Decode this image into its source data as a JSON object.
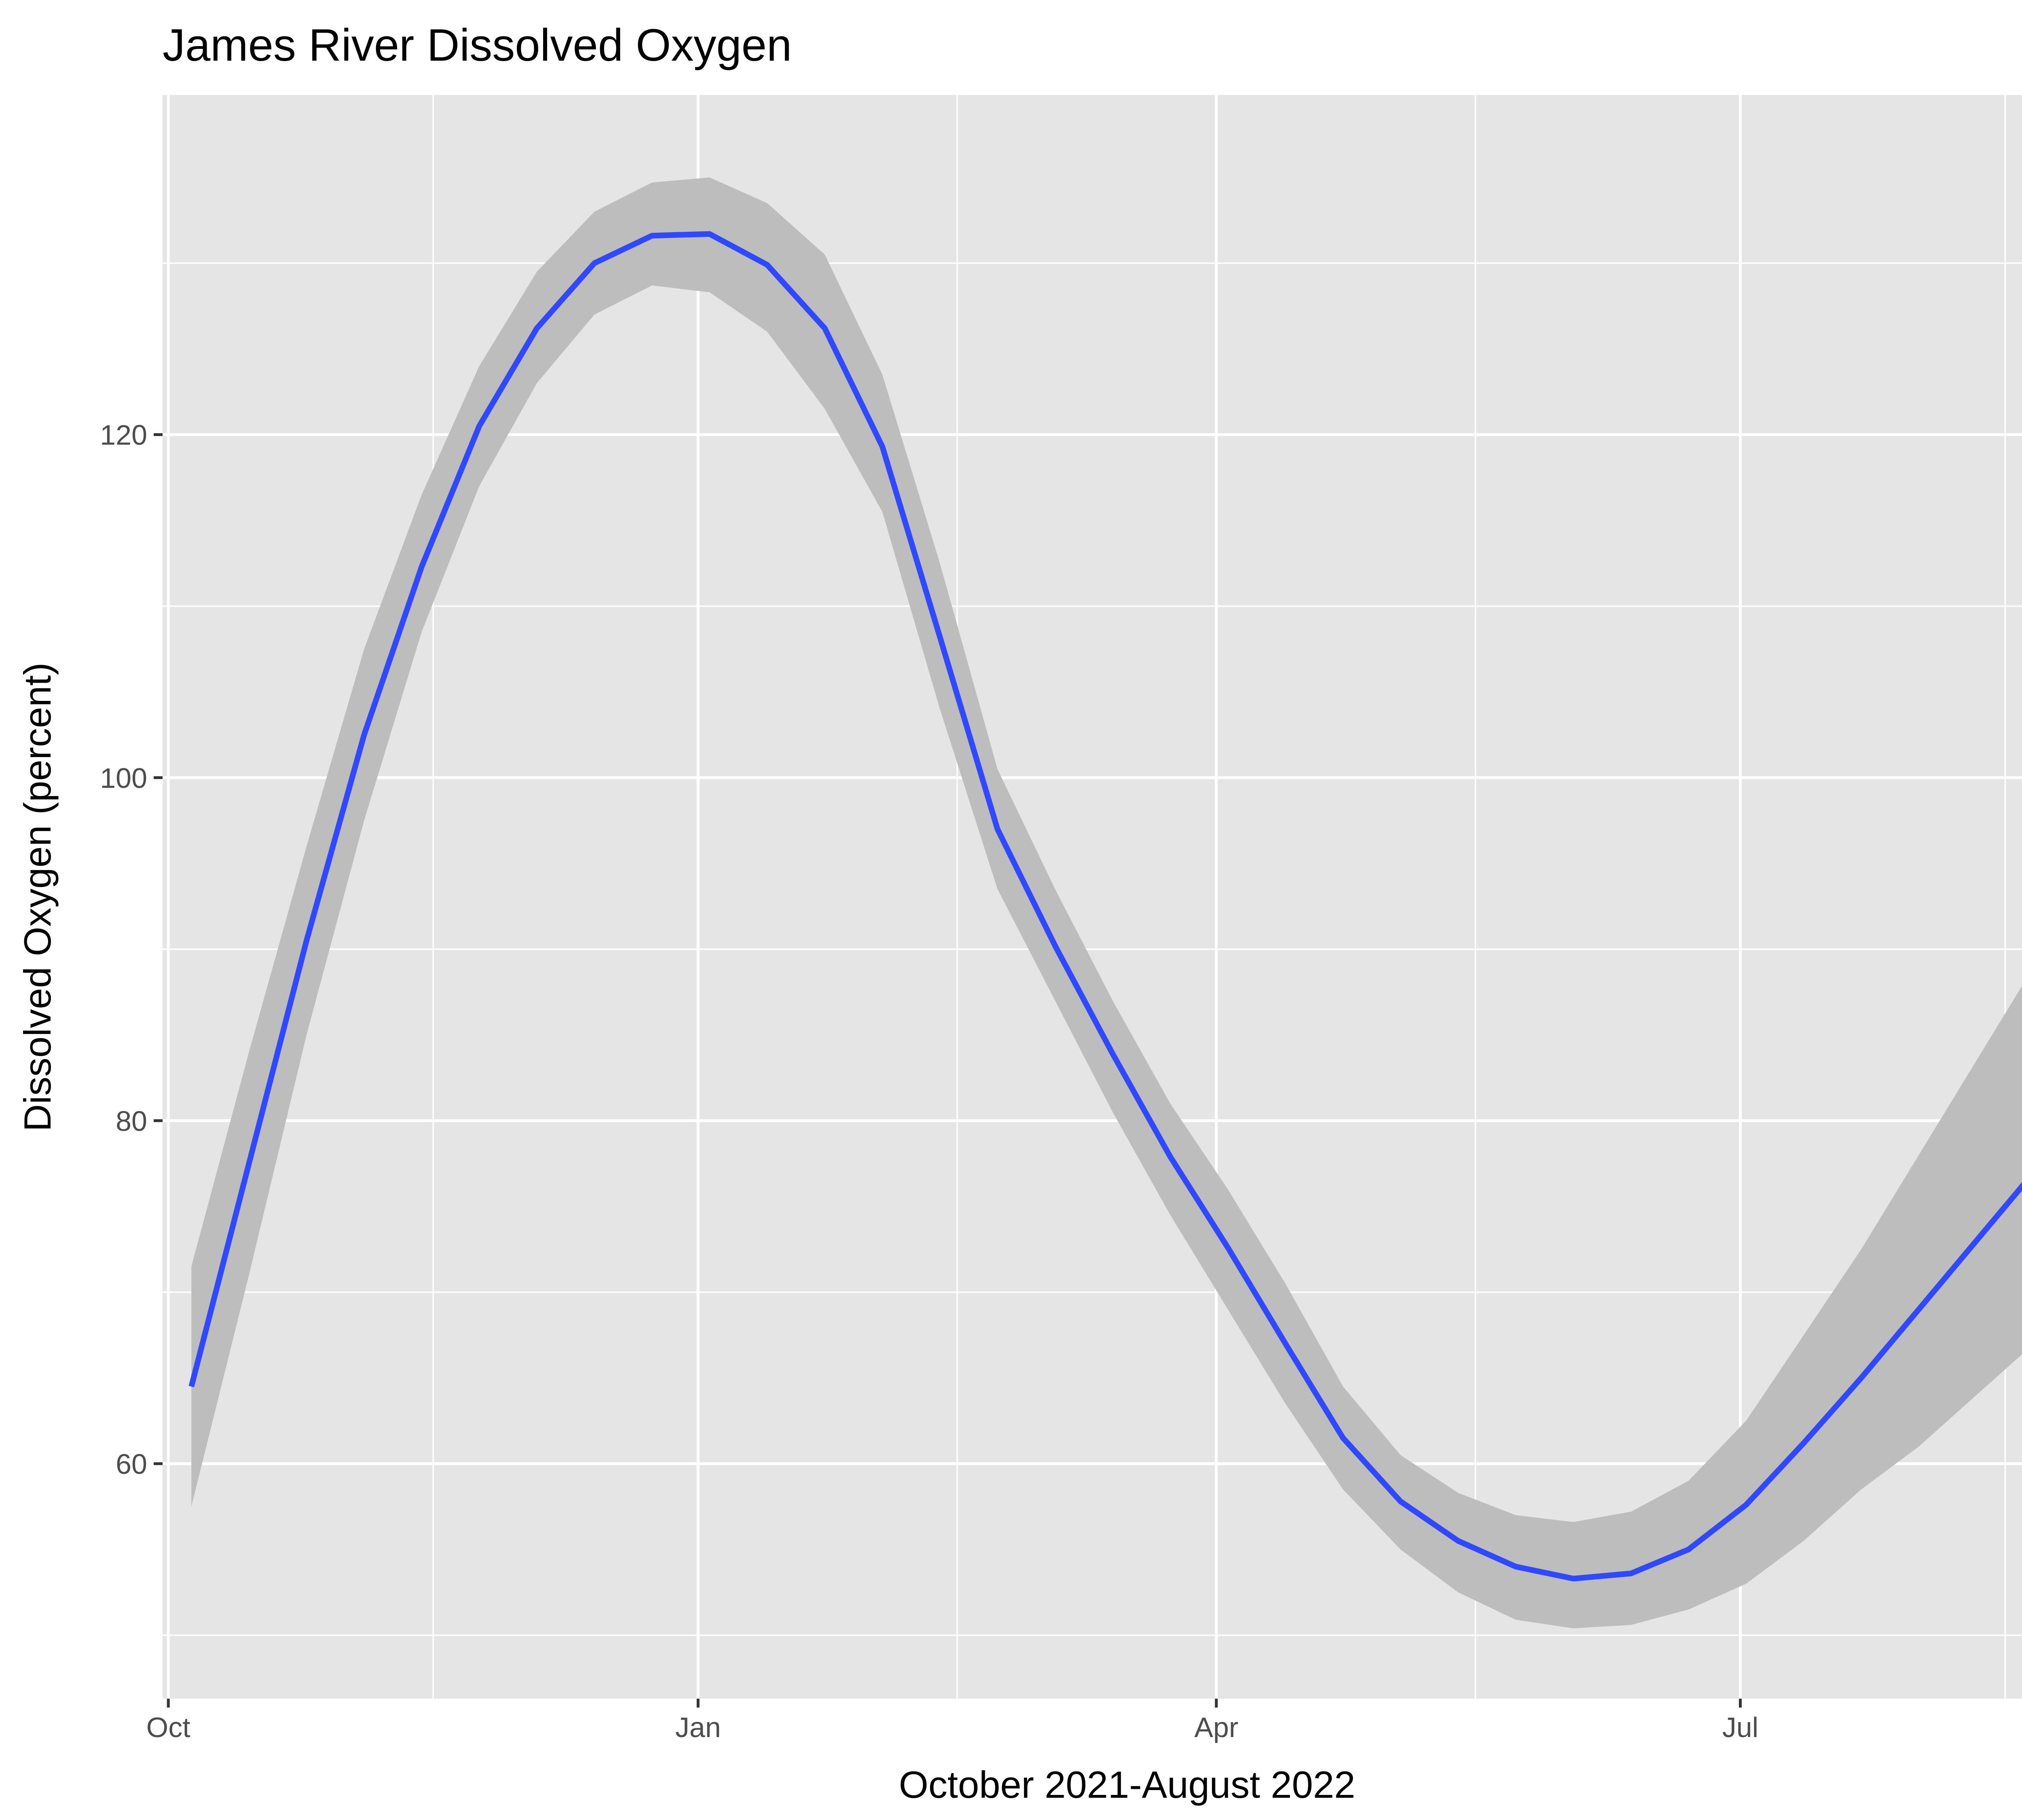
{
  "chart_data": {
    "type": "line",
    "title": "James River Dissolved Oxygen",
    "xlabel": "October 2021-August 2022",
    "ylabel": "Dissolved Oxygen (percent)",
    "x_axis": {
      "type": "date",
      "range": [
        "2021-09-30",
        "2022-08-31"
      ],
      "major_ticks": [
        "2021-10-01",
        "2022-01-01",
        "2022-04-01",
        "2022-07-01"
      ],
      "minor_ticks": [
        "2021-11-16",
        "2022-02-15",
        "2022-05-16",
        "2022-08-16"
      ],
      "tick_labels": [
        "Oct",
        "Jan",
        "Apr",
        "Jul"
      ]
    },
    "y_axis": {
      "range": [
        46.3,
        139.8
      ],
      "major_ticks": [
        60,
        80,
        100,
        120
      ],
      "minor_ticks": [
        50,
        70,
        90,
        110,
        130
      ],
      "tick_labels": [
        "60",
        "80",
        "100",
        "120"
      ]
    },
    "grid": true,
    "legend": "none",
    "colors": {
      "panel_background": "#e5e5e5",
      "grid": "#ffffff",
      "line": "#3048ff",
      "ribbon": "#bdbdbd",
      "tick_label": "#4d4d4d"
    },
    "series": [
      {
        "x": [
          "2021-10-05",
          "2021-10-15",
          "2021-10-25",
          "2021-11-04",
          "2021-11-14",
          "2021-11-24",
          "2021-12-04",
          "2021-12-14",
          "2021-12-24",
          "2022-01-03",
          "2022-01-13",
          "2022-01-23",
          "2022-02-02",
          "2022-02-12",
          "2022-02-22",
          "2022-03-04",
          "2022-03-14",
          "2022-03-24",
          "2022-04-03",
          "2022-04-13",
          "2022-04-23",
          "2022-05-03",
          "2022-05-13",
          "2022-05-23",
          "2022-06-02",
          "2022-06-12",
          "2022-06-22",
          "2022-07-02",
          "2022-07-12",
          "2022-07-22",
          "2022-08-01",
          "2022-08-11",
          "2022-08-21"
        ],
        "y": [
          64.5,
          77.5,
          90.5,
          102.5,
          112.3,
          120.5,
          126.2,
          130.0,
          131.6,
          131.7,
          129.9,
          126.2,
          119.3,
          108.2,
          97.0,
          90.2,
          83.9,
          77.9,
          72.6,
          67.0,
          61.5,
          57.8,
          55.5,
          54.0,
          53.3,
          53.6,
          55.0,
          57.6,
          61.2,
          65.0,
          69.0,
          73.0,
          77.0
        ],
        "lower": [
          57.5,
          71.0,
          85.0,
          97.5,
          108.5,
          117.0,
          123.0,
          127.0,
          128.7,
          128.3,
          126.0,
          121.5,
          115.5,
          104.0,
          93.5,
          87.0,
          80.5,
          74.5,
          69.0,
          63.5,
          58.5,
          55.0,
          52.5,
          50.9,
          50.4,
          50.6,
          51.5,
          53.0,
          55.5,
          58.5,
          61.0,
          64.0,
          67.0
        ],
        "upper": [
          71.5,
          84.0,
          96.0,
          107.5,
          116.5,
          124.0,
          129.5,
          133.0,
          134.7,
          135.0,
          133.5,
          130.5,
          123.5,
          112.5,
          100.5,
          93.5,
          87.0,
          81.0,
          76.0,
          70.5,
          64.5,
          60.5,
          58.3,
          57.0,
          56.6,
          57.2,
          59.0,
          62.5,
          67.5,
          72.5,
          78.0,
          83.5,
          89.0
        ]
      }
    ]
  }
}
